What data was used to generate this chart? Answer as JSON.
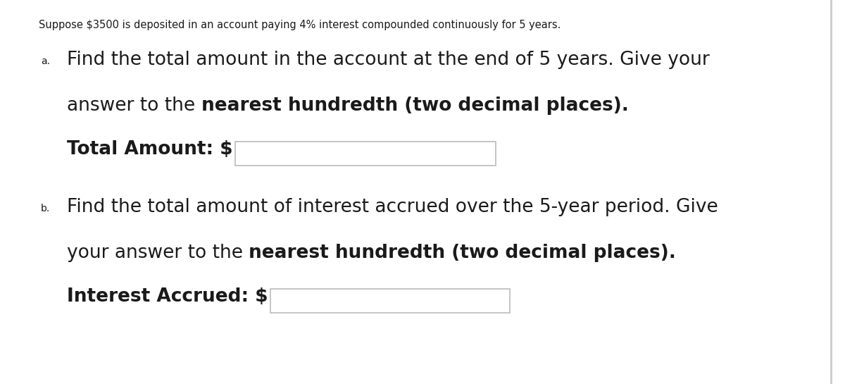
{
  "bg_color": "#ffffff",
  "text_color": "#1a1a1a",
  "header_text": "Suppose $3500 is deposited in an account paying 4% interest compounded continuously for 5 years.",
  "header_fontsize": 10.5,
  "part_a_label": "a.",
  "part_a_line1": "Find the total amount in the account at the end of 5 years. Give your",
  "part_a_line2_normal": "answer to the ",
  "part_a_line2_bold": "nearest hundredth (two decimal places).",
  "part_a_input_label": "Total Amount: $",
  "part_b_label": "b.",
  "part_b_line1": "Find the total amount of interest accrued over the 5-year period. Give",
  "part_b_line2_normal": "your answer to the ",
  "part_b_line2_bold": "nearest hundredth (two decimal places).",
  "part_b_input_label": "Interest Accrued: $",
  "box_facecolor": "#ffffff",
  "box_edgecolor": "#bbbbbb",
  "right_border_color": "#cccccc",
  "main_fontsize": 19,
  "label_fontsize": 10,
  "sub_label_fontsize": 9
}
